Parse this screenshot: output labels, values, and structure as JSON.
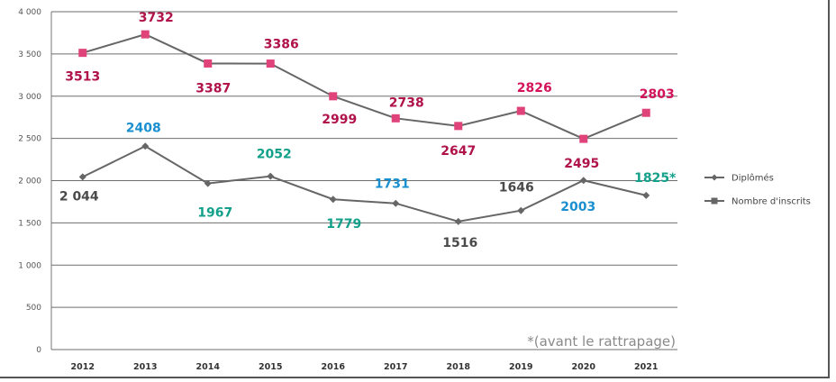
{
  "chart_data": {
    "type": "line",
    "categories": [
      "2012",
      "2013",
      "2014",
      "2015",
      "2016",
      "2017",
      "2018",
      "2019",
      "2020",
      "2021"
    ],
    "y_ticks": [
      "0",
      "500",
      "1 000",
      "1 500",
      "2 000",
      "2 500",
      "3 000",
      "3 500",
      "4 000"
    ],
    "ylim": [
      0,
      4000
    ],
    "grid": true,
    "legend_position": "right",
    "series": [
      {
        "name": "Diplômés",
        "color": "#666666",
        "values": [
          2044,
          2408,
          1967,
          2052,
          1779,
          1731,
          1516,
          1646,
          2003,
          1825
        ],
        "labels": [
          "2 044",
          "2408",
          "1967",
          "2052",
          "1779",
          "1731",
          "1516",
          "1646",
          "2003",
          "1825*"
        ],
        "label_colors": [
          "#4a4a4a",
          "#1a8fd0",
          "#13a08a",
          "#13a08a",
          "#13a08a",
          "#1a8fd0",
          "#4a4a4a",
          "#4a4a4a",
          "#1a8fd0",
          "#13a08a"
        ]
      },
      {
        "name": "Nombre d'inscrits",
        "color": "#666666",
        "marker_color": "#e0427a",
        "values": [
          3513,
          3732,
          3387,
          3386,
          2999,
          2738,
          2647,
          2826,
          2495,
          2803
        ],
        "labels": [
          "3513",
          "3732",
          "3387",
          "3386",
          "2999",
          "2738",
          "2647",
          "2826",
          "2495",
          "2803"
        ],
        "label_colors": [
          "#b0124a",
          "#b0124a",
          "#b0124a",
          "#b0124a",
          "#b0124a",
          "#b0124a",
          "#b0124a",
          "#d4145a",
          "#b0124a",
          "#d4145a"
        ]
      }
    ],
    "annotation": "*(avant le rattrapage)"
  }
}
